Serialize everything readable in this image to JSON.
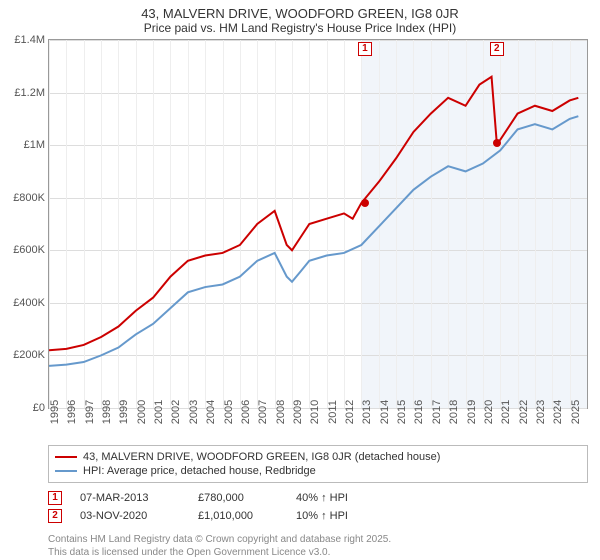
{
  "title": "43, MALVERN DRIVE, WOODFORD GREEN, IG8 0JR",
  "subtitle": "Price paid vs. HM Land Registry's House Price Index (HPI)",
  "chart": {
    "type": "line",
    "background_color": "#ffffff",
    "grid_color": "#dddddd",
    "border_color": "#999999",
    "xlim": [
      1995,
      2026
    ],
    "ylim": [
      0,
      1400000
    ],
    "yticks": [
      0,
      200000,
      400000,
      600000,
      800000,
      1000000,
      1200000,
      1400000
    ],
    "ytick_labels": [
      "£0",
      "£200K",
      "£400K",
      "£600K",
      "£800K",
      "£1M",
      "£1.2M",
      "£1.4M"
    ],
    "xticks": [
      1995,
      1996,
      1997,
      1998,
      1999,
      2000,
      2001,
      2002,
      2003,
      2004,
      2005,
      2006,
      2007,
      2008,
      2009,
      2010,
      2011,
      2012,
      2013,
      2014,
      2015,
      2016,
      2017,
      2018,
      2019,
      2020,
      2021,
      2022,
      2023,
      2024,
      2025
    ],
    "shade_from": 2013,
    "shade_color": "#e8eef7",
    "series_red": {
      "color": "#cc0000",
      "width": 2,
      "points": [
        [
          1995,
          220000
        ],
        [
          1996,
          225000
        ],
        [
          1997,
          240000
        ],
        [
          1998,
          270000
        ],
        [
          1999,
          310000
        ],
        [
          2000,
          370000
        ],
        [
          2001,
          420000
        ],
        [
          2002,
          500000
        ],
        [
          2003,
          560000
        ],
        [
          2004,
          580000
        ],
        [
          2005,
          590000
        ],
        [
          2006,
          620000
        ],
        [
          2007,
          700000
        ],
        [
          2008,
          750000
        ],
        [
          2008.7,
          620000
        ],
        [
          2009,
          600000
        ],
        [
          2009.5,
          650000
        ],
        [
          2010,
          700000
        ],
        [
          2011,
          720000
        ],
        [
          2012,
          740000
        ],
        [
          2012.5,
          720000
        ],
        [
          2013,
          780000
        ],
        [
          2014,
          860000
        ],
        [
          2015,
          950000
        ],
        [
          2016,
          1050000
        ],
        [
          2017,
          1120000
        ],
        [
          2018,
          1180000
        ],
        [
          2019,
          1150000
        ],
        [
          2019.8,
          1230000
        ],
        [
          2020.5,
          1260000
        ],
        [
          2020.8,
          1010000
        ],
        [
          2021,
          1020000
        ],
        [
          2022,
          1120000
        ],
        [
          2023,
          1150000
        ],
        [
          2024,
          1130000
        ],
        [
          2025,
          1170000
        ],
        [
          2025.5,
          1180000
        ]
      ]
    },
    "series_blue": {
      "color": "#6699cc",
      "width": 2,
      "points": [
        [
          1995,
          160000
        ],
        [
          1996,
          165000
        ],
        [
          1997,
          175000
        ],
        [
          1998,
          200000
        ],
        [
          1999,
          230000
        ],
        [
          2000,
          280000
        ],
        [
          2001,
          320000
        ],
        [
          2002,
          380000
        ],
        [
          2003,
          440000
        ],
        [
          2004,
          460000
        ],
        [
          2005,
          470000
        ],
        [
          2006,
          500000
        ],
        [
          2007,
          560000
        ],
        [
          2008,
          590000
        ],
        [
          2008.7,
          500000
        ],
        [
          2009,
          480000
        ],
        [
          2009.5,
          520000
        ],
        [
          2010,
          560000
        ],
        [
          2011,
          580000
        ],
        [
          2012,
          590000
        ],
        [
          2013,
          620000
        ],
        [
          2014,
          690000
        ],
        [
          2015,
          760000
        ],
        [
          2016,
          830000
        ],
        [
          2017,
          880000
        ],
        [
          2018,
          920000
        ],
        [
          2019,
          900000
        ],
        [
          2020,
          930000
        ],
        [
          2021,
          980000
        ],
        [
          2022,
          1060000
        ],
        [
          2023,
          1080000
        ],
        [
          2024,
          1060000
        ],
        [
          2025,
          1100000
        ],
        [
          2025.5,
          1110000
        ]
      ]
    },
    "marker_points": [
      {
        "id": "1",
        "x": 2013.2,
        "y": 780000
      },
      {
        "id": "2",
        "x": 2020.8,
        "y": 1010000
      }
    ],
    "marker_color": "#cc0000"
  },
  "legend": {
    "red_label": "43, MALVERN DRIVE, WOODFORD GREEN, IG8 0JR (detached house)",
    "blue_label": "HPI: Average price, detached house, Redbridge"
  },
  "events": [
    {
      "id": "1",
      "date": "07-MAR-2013",
      "price": "£780,000",
      "delta": "40% ↑ HPI"
    },
    {
      "id": "2",
      "date": "03-NOV-2020",
      "price": "£1,010,000",
      "delta": "10% ↑ HPI"
    }
  ],
  "attribution_line1": "Contains HM Land Registry data © Crown copyright and database right 2025.",
  "attribution_line2": "This data is licensed under the Open Government Licence v3.0."
}
